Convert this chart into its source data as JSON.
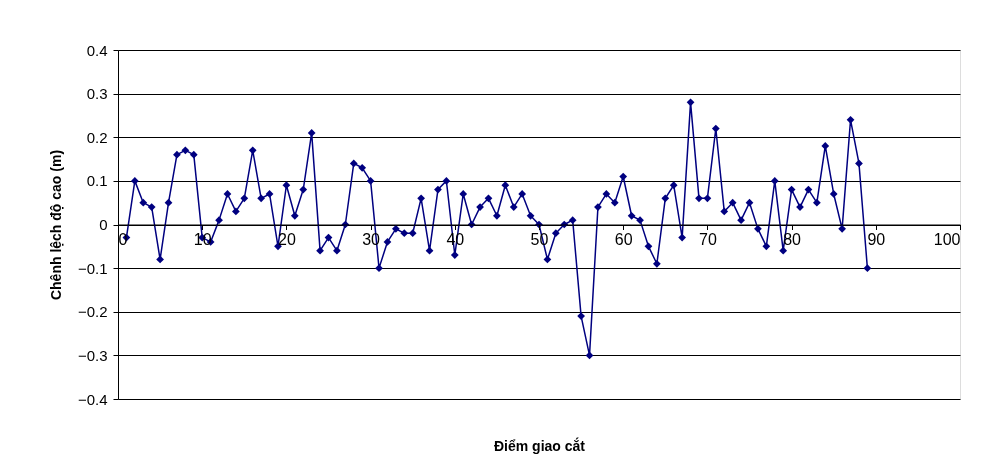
{
  "chart_data": {
    "type": "line",
    "xlabel": "Điểm giao cắt",
    "ylabel": "Chênh lệch độ cao (m)",
    "x": [
      1,
      2,
      3,
      4,
      5,
      6,
      7,
      8,
      9,
      10,
      11,
      12,
      13,
      14,
      15,
      16,
      17,
      18,
      19,
      20,
      21,
      22,
      23,
      24,
      25,
      26,
      27,
      28,
      29,
      30,
      31,
      32,
      33,
      34,
      35,
      36,
      37,
      38,
      39,
      40,
      41,
      42,
      43,
      44,
      45,
      46,
      47,
      48,
      49,
      50,
      51,
      52,
      53,
      54,
      55,
      56,
      57,
      58,
      59,
      60,
      61,
      62,
      63,
      64,
      65,
      66,
      67,
      68,
      69,
      70,
      71,
      72,
      73,
      74,
      75,
      76,
      77,
      78,
      79,
      80,
      81,
      82,
      83,
      84,
      85,
      86,
      87,
      88,
      89
    ],
    "series": [
      {
        "color": "#000080",
        "values": [
          -0.03,
          0.1,
          0.05,
          0.04,
          -0.08,
          0.05,
          0.16,
          0.17,
          0.16,
          -0.03,
          -0.04,
          0.01,
          0.07,
          0.03,
          0.06,
          0.17,
          0.06,
          0.07,
          -0.05,
          0.09,
          0.02,
          0.08,
          0.21,
          -0.06,
          -0.03,
          -0.06,
          0.0,
          0.14,
          0.13,
          0.1,
          -0.1,
          -0.04,
          -0.01,
          -0.02,
          -0.02,
          0.06,
          -0.06,
          0.08,
          0.1,
          -0.07,
          0.07,
          0.0,
          0.04,
          0.06,
          0.02,
          0.09,
          0.04,
          0.07,
          0.02,
          0.0,
          -0.08,
          -0.02,
          0.0,
          0.01,
          -0.21,
          -0.3,
          0.04,
          0.07,
          0.05,
          0.11,
          0.02,
          0.01,
          -0.05,
          -0.09,
          0.06,
          0.09,
          -0.03,
          0.28,
          0.06,
          0.06,
          0.22,
          0.03,
          0.05,
          0.01,
          0.05,
          -0.01,
          -0.05,
          0.1,
          -0.06,
          0.08,
          0.04,
          0.08,
          0.05,
          0.18,
          0.07,
          -0.01,
          0.24,
          0.14,
          -0.1
        ]
      }
    ],
    "xlim": [
      0,
      100
    ],
    "xticks": [
      0,
      10,
      20,
      30,
      40,
      50,
      60,
      70,
      80,
      90,
      100
    ],
    "ylim": [
      -0.4,
      0.4
    ],
    "yticks": [
      -0.4,
      -0.3,
      -0.2,
      -0.1,
      0,
      0.1,
      0.2,
      0.3,
      0.4
    ],
    "grid": "y",
    "marker": "diamond",
    "line_style": "solid"
  }
}
